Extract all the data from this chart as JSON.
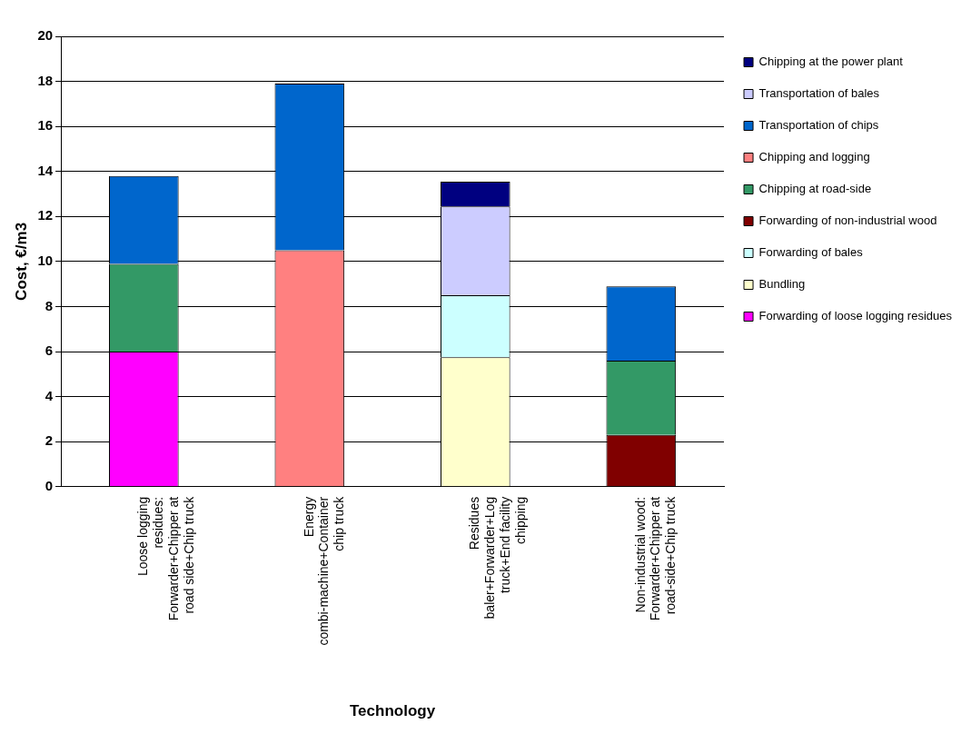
{
  "chart_data": {
    "type": "bar",
    "stacked": true,
    "xlabel": "Technology",
    "ylabel": "Cost, €/m3",
    "categories": [
      "Loose logging residues: Forwarder+Chipper at road side+Chip truck",
      "Energy combi-machine+Container chip truck",
      "Residues baler+Forwarder+Log truck+End facility chipping",
      "Non-industrial wood: Forwarder+Chipper at road-side+Chip truck"
    ],
    "series": [
      {
        "name": "Forwarding of loose logging residues",
        "color": "#ff00ff",
        "values": [
          6.0,
          null,
          null,
          null
        ]
      },
      {
        "name": "Bundling",
        "color": "#ffffcc",
        "values": [
          null,
          null,
          5.75,
          null
        ]
      },
      {
        "name": "Forwarding of bales",
        "color": "#ccffff",
        "values": [
          null,
          null,
          2.75,
          null
        ]
      },
      {
        "name": "Forwarding of non-industrial wood",
        "color": "#800000",
        "values": [
          null,
          null,
          null,
          2.3
        ]
      },
      {
        "name": "Chipping at road-side",
        "color": "#339966",
        "values": [
          3.9,
          null,
          null,
          3.3
        ]
      },
      {
        "name": "Chipping and logging",
        "color": "#ff8080",
        "values": [
          null,
          10.5,
          null,
          null
        ]
      },
      {
        "name": "Transportation of chips",
        "color": "#0066cc",
        "values": [
          3.9,
          7.4,
          null,
          3.3
        ]
      },
      {
        "name": "Transportation of bales",
        "color": "#ccccff",
        "values": [
          null,
          null,
          3.95,
          null
        ]
      },
      {
        "name": "Chipping at the power plant",
        "color": "#000080",
        "values": [
          null,
          null,
          1.1,
          null
        ]
      }
    ],
    "ylim": [
      0,
      20
    ],
    "yticks": [
      0,
      2,
      4,
      6,
      8,
      10,
      12,
      14,
      16,
      18,
      20
    ],
    "grid": "y",
    "legend": "right"
  }
}
